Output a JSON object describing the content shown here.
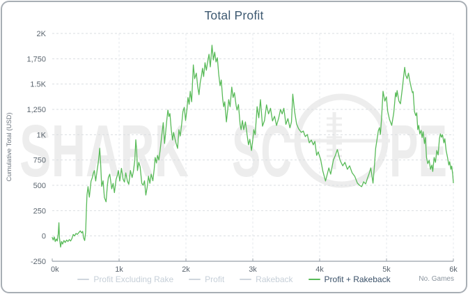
{
  "colors": {
    "accent_green": "#58ba58",
    "legend_inactive_dash": "#cfd6dd",
    "legend_inactive_text": "#c6cfd8",
    "legend_active_text": "#3a5068",
    "title_text": "#3c5870",
    "tick_label": "#5a646e",
    "axis_line": "#99a1a9",
    "watermark": "#ededed",
    "panel_border": "#a8aeb4"
  },
  "watermark": {
    "left": "SHARK",
    "mid": "SC",
    "right": "PE",
    "color": "#ededed"
  },
  "chart_data": {
    "type": "line",
    "title": "Total Profit",
    "xlabel": "No. Games",
    "ylabel": "Cumulative Total (USD)",
    "xlim": [
      0,
      6000
    ],
    "ylim": [
      -250,
      2000
    ],
    "grid": "dashed",
    "legend_position": "bottom",
    "x_ticks": [
      {
        "label": "0k",
        "value": 0
      },
      {
        "label": "1k",
        "value": 1000
      },
      {
        "label": "2k",
        "value": 2000
      },
      {
        "label": "3k",
        "value": 3000
      },
      {
        "label": "4k",
        "value": 4000
      },
      {
        "label": "5k",
        "value": 5000
      },
      {
        "label": "6k",
        "value": 6000
      }
    ],
    "y_ticks": [
      {
        "label": "2K",
        "value": 2000
      },
      {
        "label": "1,750",
        "value": 1750
      },
      {
        "label": "1.5K",
        "value": 1500
      },
      {
        "label": "1,250",
        "value": 1250
      },
      {
        "label": "1K",
        "value": 1000
      },
      {
        "label": "750",
        "value": 750
      },
      {
        "label": "500",
        "value": 500
      },
      {
        "label": "250",
        "value": 250
      },
      {
        "label": "0",
        "value": 0
      },
      {
        "label": "-250",
        "value": -250
      }
    ],
    "series": [
      {
        "name": "Profit Excluding Rake",
        "visible": false,
        "color": "#cfd6dd",
        "points": []
      },
      {
        "name": "Profit",
        "visible": false,
        "color": "#cfd6dd",
        "points": []
      },
      {
        "name": "Rakeback",
        "visible": false,
        "color": "#cfd6dd",
        "points": []
      },
      {
        "name": "Profit + Rakeback",
        "visible": true,
        "color": "#58ba58",
        "points": [
          [
            0,
            -15
          ],
          [
            15,
            -40
          ],
          [
            30,
            -10
          ],
          [
            45,
            -55
          ],
          [
            60,
            -30
          ],
          [
            75,
            -50
          ],
          [
            90,
            20
          ],
          [
            100,
            130
          ],
          [
            108,
            -20
          ],
          [
            125,
            -110
          ],
          [
            140,
            -55
          ],
          [
            155,
            -80
          ],
          [
            175,
            -45
          ],
          [
            195,
            -65
          ],
          [
            215,
            -40
          ],
          [
            235,
            -55
          ],
          [
            255,
            -35
          ],
          [
            275,
            -50
          ],
          [
            295,
            -25
          ],
          [
            315,
            15
          ],
          [
            335,
            0
          ],
          [
            355,
            25
          ],
          [
            375,
            15
          ],
          [
            400,
            35
          ],
          [
            420,
            50
          ],
          [
            440,
            30
          ],
          [
            455,
            45
          ],
          [
            470,
            -20
          ],
          [
            485,
            -45
          ],
          [
            500,
            40
          ],
          [
            510,
            250
          ],
          [
            520,
            404
          ],
          [
            535,
            487
          ],
          [
            555,
            383
          ],
          [
            580,
            540
          ],
          [
            600,
            577
          ],
          [
            615,
            620
          ],
          [
            630,
            646
          ],
          [
            650,
            543
          ],
          [
            670,
            640
          ],
          [
            690,
            730
          ],
          [
            710,
            866
          ],
          [
            725,
            700
          ],
          [
            740,
            490
          ],
          [
            760,
            545
          ],
          [
            780,
            380
          ],
          [
            805,
            337
          ],
          [
            825,
            500
          ],
          [
            840,
            577
          ],
          [
            860,
            610
          ],
          [
            875,
            540
          ],
          [
            890,
            465
          ],
          [
            910,
            520
          ],
          [
            930,
            428
          ],
          [
            955,
            560
          ],
          [
            975,
            600
          ],
          [
            990,
            646
          ],
          [
            1010,
            543
          ],
          [
            1035,
            668
          ],
          [
            1060,
            560
          ],
          [
            1080,
            532
          ],
          [
            1100,
            623
          ],
          [
            1125,
            540
          ],
          [
            1145,
            510
          ],
          [
            1170,
            646
          ],
          [
            1195,
            577
          ],
          [
            1215,
            640
          ],
          [
            1235,
            750
          ],
          [
            1250,
            950
          ],
          [
            1262,
            850
          ],
          [
            1275,
            646
          ],
          [
            1295,
            727
          ],
          [
            1315,
            683
          ],
          [
            1340,
            520
          ],
          [
            1360,
            500
          ],
          [
            1380,
            545
          ],
          [
            1400,
            404
          ],
          [
            1420,
            480
          ],
          [
            1440,
            590
          ],
          [
            1460,
            520
          ],
          [
            1480,
            610
          ],
          [
            1505,
            545
          ],
          [
            1525,
            660
          ],
          [
            1540,
            775
          ],
          [
            1558,
            720
          ],
          [
            1575,
            796
          ],
          [
            1595,
            750
          ],
          [
            1615,
            851
          ],
          [
            1640,
            1000
          ],
          [
            1660,
            1119
          ],
          [
            1680,
            913
          ],
          [
            1700,
            1050
          ],
          [
            1715,
            1150
          ],
          [
            1730,
            1243
          ],
          [
            1745,
            1180
          ],
          [
            1760,
            1209
          ],
          [
            1780,
            1050
          ],
          [
            1800,
            947
          ],
          [
            1815,
            1023
          ],
          [
            1835,
            960
          ],
          [
            1855,
            910
          ],
          [
            1875,
            865
          ],
          [
            1895,
            1050
          ],
          [
            1915,
            988
          ],
          [
            1935,
            1100
          ],
          [
            1955,
            1230
          ],
          [
            1975,
            1270
          ],
          [
            1995,
            1140
          ],
          [
            2015,
            1250
          ],
          [
            2030,
            1367
          ],
          [
            2048,
            1300
          ],
          [
            2065,
            1429
          ],
          [
            2085,
            1325
          ],
          [
            2110,
            1690
          ],
          [
            2130,
            1553
          ],
          [
            2155,
            1608
          ],
          [
            2175,
            1480
          ],
          [
            2195,
            1395
          ],
          [
            2215,
            1520
          ],
          [
            2230,
            1574
          ],
          [
            2248,
            1656
          ],
          [
            2265,
            1574
          ],
          [
            2285,
            1711
          ],
          [
            2305,
            1636
          ],
          [
            2325,
            1720
          ],
          [
            2345,
            1794
          ],
          [
            2365,
            1670
          ],
          [
            2390,
            1884
          ],
          [
            2410,
            1738
          ],
          [
            2430,
            1815
          ],
          [
            2450,
            1718
          ],
          [
            2470,
            1760
          ],
          [
            2490,
            1600
          ],
          [
            2510,
            1484
          ],
          [
            2528,
            1540
          ],
          [
            2550,
            1350
          ],
          [
            2565,
            1277
          ],
          [
            2580,
            1325
          ],
          [
            2605,
            1126
          ],
          [
            2625,
            1250
          ],
          [
            2640,
            1346
          ],
          [
            2660,
            1277
          ],
          [
            2685,
            1470
          ],
          [
            2705,
            1367
          ],
          [
            2725,
            1415
          ],
          [
            2750,
            1290
          ],
          [
            2765,
            1243
          ],
          [
            2785,
            1298
          ],
          [
            2810,
            1100
          ],
          [
            2825,
            1050
          ],
          [
            2845,
            1140
          ],
          [
            2865,
            1050
          ],
          [
            2890,
            1126
          ],
          [
            2915,
            1000
          ],
          [
            2935,
            900
          ],
          [
            2955,
            955
          ],
          [
            2980,
            844
          ],
          [
            3000,
            950
          ],
          [
            3015,
            1050
          ],
          [
            3035,
            1000
          ],
          [
            3065,
            1277
          ],
          [
            3090,
            1167
          ],
          [
            3115,
            1346
          ],
          [
            3145,
            1084
          ],
          [
            3175,
            1140
          ],
          [
            3205,
            1295
          ],
          [
            3235,
            1205
          ],
          [
            3265,
            1261
          ],
          [
            3295,
            1136
          ],
          [
            3325,
            1182
          ],
          [
            3355,
            1091
          ],
          [
            3385,
            1160
          ],
          [
            3415,
            1250
          ],
          [
            3440,
            1205
          ],
          [
            3465,
            1261
          ],
          [
            3495,
            1102
          ],
          [
            3525,
            1159
          ],
          [
            3555,
            1068
          ],
          [
            3578,
            1125
          ],
          [
            3598,
            1400
          ],
          [
            3625,
            1230
          ],
          [
            3655,
            1105
          ],
          [
            3685,
            1058
          ],
          [
            3725,
            1023
          ],
          [
            3755,
            1036
          ],
          [
            3785,
            981
          ],
          [
            3815,
            1002
          ],
          [
            3845,
            920
          ],
          [
            3875,
            947
          ],
          [
            3905,
            900
          ],
          [
            3928,
            934
          ],
          [
            3955,
            796
          ],
          [
            3978,
            830
          ],
          [
            4015,
            755
          ],
          [
            4048,
            640
          ],
          [
            4088,
            543
          ],
          [
            4118,
            620
          ],
          [
            4138,
            672
          ],
          [
            4165,
            610
          ],
          [
            4205,
            750
          ],
          [
            4238,
            800
          ],
          [
            4265,
            853
          ],
          [
            4305,
            748
          ],
          [
            4345,
            693
          ],
          [
            4378,
            727
          ],
          [
            4415,
            658
          ],
          [
            4448,
            693
          ],
          [
            4485,
            624
          ],
          [
            4525,
            589
          ],
          [
            4565,
            521
          ],
          [
            4598,
            500
          ],
          [
            4628,
            486
          ],
          [
            4658,
            535
          ],
          [
            4688,
            514
          ],
          [
            4715,
            569
          ],
          [
            4738,
            610
          ],
          [
            4765,
            672
          ],
          [
            4798,
            521
          ],
          [
            4818,
            679
          ],
          [
            4838,
            865
          ],
          [
            4858,
            954
          ],
          [
            4878,
            1040
          ],
          [
            4895,
            1070
          ],
          [
            4908,
            1002
          ],
          [
            4925,
            1153
          ],
          [
            4948,
            1429
          ],
          [
            4975,
            1332
          ],
          [
            4998,
            1374
          ],
          [
            5018,
            1230
          ],
          [
            5045,
            1150
          ],
          [
            5078,
            1092
          ],
          [
            5108,
            1216
          ],
          [
            5135,
            1415
          ],
          [
            5148,
            1374
          ],
          [
            5158,
            1436
          ],
          [
            5185,
            1332
          ],
          [
            5208,
            1305
          ],
          [
            5235,
            1450
          ],
          [
            5258,
            1587
          ],
          [
            5272,
            1665
          ],
          [
            5288,
            1587
          ],
          [
            5308,
            1553
          ],
          [
            5328,
            1608
          ],
          [
            5348,
            1532
          ],
          [
            5368,
            1470
          ],
          [
            5388,
            1415
          ],
          [
            5398,
            1425
          ],
          [
            5418,
            1230
          ],
          [
            5438,
            1188
          ],
          [
            5452,
            1216
          ],
          [
            5468,
            1050
          ],
          [
            5482,
            1092
          ],
          [
            5498,
            1008
          ],
          [
            5518,
            1043
          ],
          [
            5532,
            972
          ],
          [
            5548,
            1029
          ],
          [
            5568,
            913
          ],
          [
            5582,
            972
          ],
          [
            5598,
            775
          ],
          [
            5618,
            714
          ],
          [
            5638,
            747
          ],
          [
            5658,
            658
          ],
          [
            5678,
            700
          ],
          [
            5692,
            637
          ],
          [
            5712,
            775
          ],
          [
            5732,
            727
          ],
          [
            5752,
            844
          ],
          [
            5772,
            800
          ],
          [
            5792,
            961
          ],
          [
            5805,
            1008
          ],
          [
            5822,
            975
          ],
          [
            5838,
            1000
          ],
          [
            5858,
            920
          ],
          [
            5872,
            960
          ],
          [
            5892,
            844
          ],
          [
            5912,
            775
          ],
          [
            5932,
            700
          ],
          [
            5945,
            733
          ],
          [
            5962,
            658
          ],
          [
            5975,
            690
          ],
          [
            5990,
            610
          ],
          [
            6000,
            525
          ]
        ]
      }
    ]
  }
}
